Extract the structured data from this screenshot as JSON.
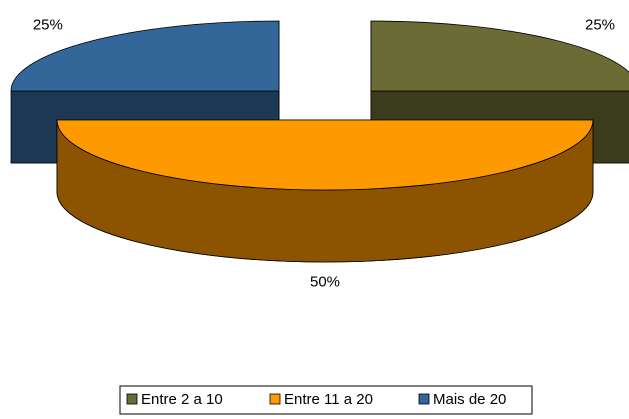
{
  "chart_data": {
    "type": "pie3d",
    "categories": [
      "Entre 2 a 10",
      "Entre 11 a 20",
      "Mais de 20"
    ],
    "values": [
      25,
      50,
      25
    ],
    "value_labels": [
      "25%",
      "50%",
      "25%"
    ],
    "colors": [
      "#6b6b35",
      "#ff9900",
      "#336699"
    ],
    "legend": "bottom"
  }
}
